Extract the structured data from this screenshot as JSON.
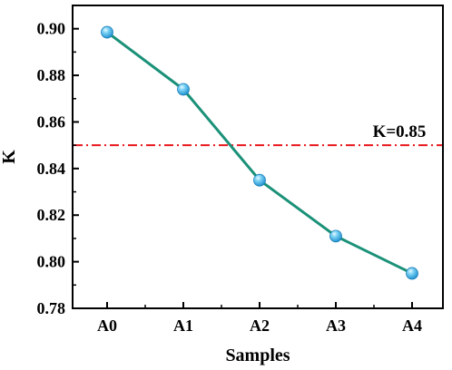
{
  "chart_data": {
    "type": "line",
    "categories": [
      "A0",
      "A1",
      "A2",
      "A3",
      "A4"
    ],
    "values": [
      0.8985,
      0.874,
      0.835,
      0.811,
      0.795
    ],
    "xlabel": "Samples",
    "ylabel": "K",
    "ylim": [
      0.78,
      0.91
    ],
    "yticks": [
      "0.78",
      "0.80",
      "0.82",
      "0.84",
      "0.86",
      "0.88",
      "0.90"
    ],
    "grid": false,
    "reference_line": {
      "value": 0.85,
      "label": "K=0.85",
      "style": "dash-dot",
      "color": "#e8161b"
    },
    "line_color": "#1a9178",
    "marker_color": "#3ab5e8"
  }
}
